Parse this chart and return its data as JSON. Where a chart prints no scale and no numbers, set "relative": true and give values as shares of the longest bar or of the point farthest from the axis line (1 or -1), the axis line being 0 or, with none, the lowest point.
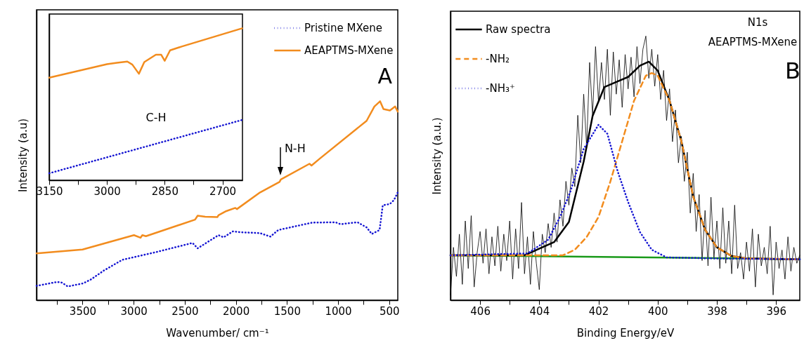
{
  "chart_data": [
    {
      "type": "line",
      "xlabel": "Wavenumber/ cm⁻¹",
      "ylabel": "Intensity (a.u)",
      "relative": true,
      "tick_labels": "x",
      "legend": "top right",
      "grid": false,
      "xlim": [
        3950,
        416
      ],
      "xticks": [
        {
          "value": 3750,
          "label": null
        },
        3500,
        {
          "value": 3250,
          "label": null
        },
        3000,
        {
          "value": 2750,
          "label": null
        },
        2500,
        {
          "value": 2250,
          "label": null
        },
        2000,
        {
          "value": 1750,
          "label": null
        },
        1500,
        {
          "value": 1250,
          "label": null
        },
        1000,
        {
          "value": 750,
          "label": null
        },
        500
      ],
      "series": [
        {
          "name": "Pristine MXene",
          "color": "#1414d2",
          "line_style": "dotted",
          "x": [
            3950,
            3747,
            3700,
            3645,
            3492,
            3416,
            3289,
            3111,
            2780,
            2424,
            2374,
            2330,
            2170,
            2120,
            2030,
            1960,
            1763,
            1662,
            1585,
            1255,
            1026,
            975,
            810,
            721,
            670,
            594,
            563,
            493,
            454,
            416
          ],
          "values": [
            0.072,
            0.092,
            0.088,
            0.069,
            0.085,
            0.105,
            0.15,
            0.203,
            0.242,
            0.288,
            0.261,
            0.275,
            0.327,
            0.316,
            0.346,
            0.342,
            0.337,
            0.32,
            0.353,
            0.39,
            0.392,
            0.382,
            0.392,
            0.366,
            0.333,
            0.353,
            0.477,
            0.484,
            0.503,
            0.542
          ]
        },
        {
          "name": "AEAPTMS-MXene",
          "color": "#f28c1e",
          "line_style": "solid",
          "x": [
            3950,
            3500,
            2997,
            2933,
            2915,
            2880,
            2399,
            2374,
            2300,
            2180,
            2170,
            2094,
            2005,
            1990,
            1763,
            1573,
            1560,
            1280,
            1260,
            1179,
            721,
            645,
            589,
            556,
            493,
            442,
            416
          ],
          "values": [
            0.235,
            0.255,
            0.327,
            0.314,
            0.327,
            0.322,
            0.405,
            0.425,
            0.42,
            0.418,
            0.427,
            0.448,
            0.464,
            0.458,
            0.542,
            0.595,
            0.607,
            0.686,
            0.677,
            0.712,
            0.902,
            0.974,
            1.0,
            0.961,
            0.954,
            0.974,
            0.948
          ]
        }
      ],
      "annotations": [
        "A",
        {
          "text": "N-H",
          "x": 1565,
          "y": 0.62
        }
      ]
    },
    {
      "type": "line",
      "relative": true,
      "tick_labels": "x",
      "grid": false,
      "xlim": [
        3150,
        2648
      ],
      "xticks": [
        3150,
        {
          "value": 3075,
          "label": null
        },
        3000,
        {
          "value": 2925,
          "label": null
        },
        2850,
        {
          "value": 2775,
          "label": null
        },
        2700
      ],
      "series": [
        {
          "color": "#1414d2",
          "line_style": "dotted",
          "x": [
            3150,
            2649
          ],
          "values": [
            0.046,
            0.397
          ]
        },
        {
          "color": "#f28c1e",
          "line_style": "solid",
          "x": [
            3150,
            3000,
            2974,
            2947,
            2934,
            2917,
            2903,
            2873,
            2859,
            2850,
            2836,
            2806,
            2649
          ],
          "values": [
            0.675,
            0.764,
            0.773,
            0.781,
            0.761,
            0.701,
            0.778,
            0.826,
            0.826,
            0.786,
            0.855,
            0.88,
            1.0
          ]
        }
      ],
      "annotations": [
        "C-H"
      ]
    },
    {
      "type": "line",
      "xlabel": "Binding Energy/eV",
      "ylabel": "Intensity (a.u.)",
      "relative": true,
      "tick_labels": "x",
      "legend": "top left",
      "grid": false,
      "xlim": [
        407,
        395.2
      ],
      "xticks": [
        406,
        {
          "value": 405,
          "label": null
        },
        404,
        {
          "value": 403,
          "label": null
        },
        402,
        {
          "value": 401,
          "label": null
        },
        400,
        {
          "value": 399,
          "label": null
        },
        398,
        {
          "value": 397,
          "label": null
        },
        396
      ],
      "series": [
        {
          "name": "Raw spectra",
          "color": "#000000",
          "line_style": "solid",
          "x": [
            407.0,
            406.9,
            406.8,
            406.7,
            406.6,
            406.5,
            406.4,
            406.3,
            406.2,
            406.1,
            406.0,
            405.9,
            405.8,
            405.7,
            405.6,
            405.5,
            405.4,
            405.3,
            405.2,
            405.1,
            405.0,
            404.9,
            404.8,
            404.7,
            404.6,
            404.5,
            404.4,
            404.3,
            404.2,
            404.1,
            404.0,
            403.9,
            403.8,
            403.7,
            403.6,
            403.5,
            403.4,
            403.3,
            403.2,
            403.1,
            403.0,
            402.9,
            402.8,
            402.7,
            402.6,
            402.5,
            402.4,
            402.3,
            402.2,
            402.1,
            402.0,
            401.9,
            401.8,
            401.7,
            401.6,
            401.5,
            401.4,
            401.3,
            401.2,
            401.1,
            401.0,
            400.9,
            400.8,
            400.7,
            400.6,
            400.5,
            400.4,
            400.3,
            400.2,
            400.1,
            400.0,
            399.9,
            399.8,
            399.7,
            399.6,
            399.5,
            399.4,
            399.3,
            399.2,
            399.1,
            399.0,
            398.9,
            398.8,
            398.7,
            398.6,
            398.5,
            398.4,
            398.3,
            398.2,
            398.1,
            398.0,
            397.9,
            397.8,
            397.7,
            397.6,
            397.5,
            397.4,
            397.3,
            397.2,
            397.1,
            397.0,
            396.9,
            396.8,
            396.7,
            396.6,
            396.5,
            396.4,
            396.3,
            396.2,
            396.1,
            396.0,
            395.9,
            395.8,
            395.7,
            395.6,
            395.5,
            395.4,
            395.3,
            395.2
          ],
          "values": [
            0.02,
            0.2,
            0.09,
            0.25,
            0.06,
            0.3,
            0.12,
            0.32,
            0.05,
            0.18,
            0.26,
            0.14,
            0.27,
            0.1,
            0.24,
            0.13,
            0.28,
            0.11,
            0.25,
            0.15,
            0.3,
            0.08,
            0.27,
            0.12,
            0.37,
            0.1,
            0.24,
            0.06,
            0.26,
            0.14,
            0.04,
            0.25,
            0.18,
            0.29,
            0.2,
            0.33,
            0.22,
            0.38,
            0.28,
            0.45,
            0.36,
            0.5,
            0.43,
            0.7,
            0.52,
            0.78,
            0.58,
            0.9,
            0.7,
            0.96,
            0.75,
            0.9,
            0.76,
            0.95,
            0.7,
            0.94,
            0.78,
            0.91,
            0.73,
            0.93,
            0.8,
            0.92,
            0.77,
            0.96,
            0.82,
            0.95,
            1.0,
            0.84,
            0.95,
            0.81,
            0.93,
            0.76,
            0.87,
            0.68,
            0.8,
            0.6,
            0.72,
            0.52,
            0.62,
            0.45,
            0.56,
            0.33,
            0.48,
            0.26,
            0.4,
            0.15,
            0.34,
            0.13,
            0.39,
            0.16,
            0.3,
            0.12,
            0.35,
            0.14,
            0.3,
            0.1,
            0.36,
            0.12,
            0.18,
            0.08,
            0.22,
            0.11,
            0.27,
            0.05,
            0.25,
            0.13,
            0.2,
            0.1,
            0.28,
            0.02,
            0.22,
            0.12,
            0.19,
            0.08,
            0.24,
            0.11,
            0.2,
            0.14,
            0.17
          ]
        },
        {
          "color": "#1a9a1a",
          "line_style": "solid",
          "x": [
            407,
            397,
            395.2
          ],
          "values": [
            0.17,
            0.158,
            0.155
          ]
        },
        {
          "color": "#000000",
          "line_style": "solid",
          "x": [
            407,
            404.5,
            403.5,
            403,
            402.5,
            402.2,
            401.8,
            401.4,
            401,
            400.6,
            400.3,
            400,
            399.6,
            399.2,
            398.8,
            398.4,
            398,
            397.5,
            397,
            395.2
          ],
          "values": [
            0.17,
            0.17,
            0.22,
            0.296,
            0.525,
            0.697,
            0.807,
            0.826,
            0.845,
            0.888,
            0.903,
            0.869,
            0.755,
            0.602,
            0.392,
            0.267,
            0.2,
            0.167,
            0.158,
            0.155
          ]
        },
        {
          "name": "-NH₂",
          "color": "#f28c1e",
          "line_style": "dashed",
          "x": [
            407,
            403.2,
            402.8,
            402.4,
            402,
            401.6,
            401.2,
            400.8,
            400.4,
            400.2,
            400,
            399.6,
            399.2,
            398.8,
            398.4,
            398,
            397.5,
            397,
            395.2
          ],
          "values": [
            0.17,
            0.17,
            0.191,
            0.239,
            0.315,
            0.449,
            0.602,
            0.755,
            0.85,
            0.86,
            0.85,
            0.755,
            0.602,
            0.392,
            0.267,
            0.2,
            0.167,
            0.158,
            0.155
          ]
        },
        {
          "name": "-NH₃⁺",
          "color": "#1414d2",
          "line_style": "dotted",
          "x": [
            407,
            404.4,
            403.7,
            403.3,
            402.95,
            402.5,
            402.0,
            401.7,
            401.35,
            401.0,
            400.6,
            400.2,
            399.7,
            398,
            397,
            395.2
          ],
          "values": [
            0.17,
            0.177,
            0.229,
            0.315,
            0.411,
            0.573,
            0.664,
            0.63,
            0.487,
            0.372,
            0.258,
            0.191,
            0.162,
            0.158,
            0.157,
            0.155
          ]
        }
      ],
      "annotations": [
        "N1s",
        "AEAPTMS-MXene",
        "B"
      ]
    }
  ]
}
